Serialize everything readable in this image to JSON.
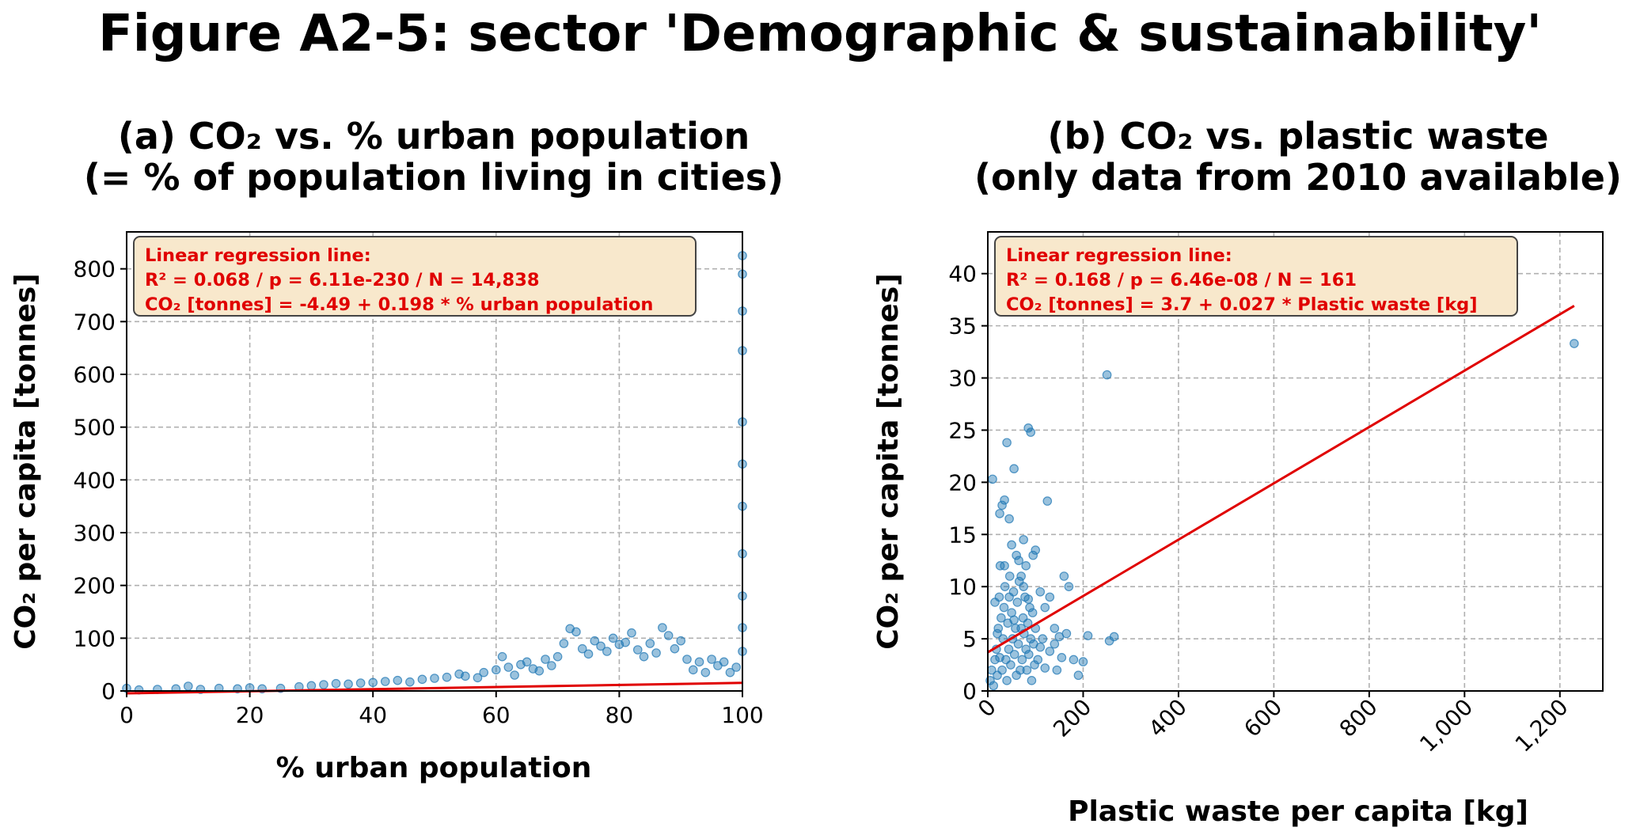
{
  "figure": {
    "title": "Figure A2-5:  sector 'Demographic & sustainability'"
  },
  "colors": {
    "points": "#1f77b4",
    "regression": "#e00000",
    "box_fill": "#f8e8cc",
    "box_stroke": "#444444"
  },
  "chart_data": [
    {
      "type": "scatter",
      "title_line1": "(a)     CO₂ vs. % urban population",
      "title_line2": "(= % of population living in cities)",
      "xlabel": "% urban population",
      "ylabel": "CO₂ per capita [tonnes]",
      "xlim": [
        0,
        100
      ],
      "ylim": [
        0,
        870
      ],
      "xticks": [
        0,
        20,
        40,
        60,
        80,
        100
      ],
      "xtick_labels": [
        "0",
        "20",
        "40",
        "60",
        "80",
        "100"
      ],
      "yticks": [
        0,
        100,
        200,
        300,
        400,
        500,
        600,
        700,
        800
      ],
      "ytick_labels": [
        "0",
        "100",
        "200",
        "300",
        "400",
        "500",
        "600",
        "700",
        "800"
      ],
      "grid": true,
      "xtick_rotation": 0,
      "annotation": {
        "line1": "Linear regression line:",
        "line2": "R² = 0.068   /   p = 6.11e-230   /   N = 14,838",
        "line3": "CO₂ [tonnes] = -4.49 + 0.198 * % urban population"
      },
      "regression": {
        "intercept": -4.49,
        "slope": 0.198
      },
      "points": [
        [
          0,
          5
        ],
        [
          2,
          2
        ],
        [
          5,
          3
        ],
        [
          8,
          4
        ],
        [
          10,
          9
        ],
        [
          12,
          3
        ],
        [
          15,
          5
        ],
        [
          18,
          4
        ],
        [
          20,
          6
        ],
        [
          22,
          4
        ],
        [
          25,
          5
        ],
        [
          28,
          8
        ],
        [
          30,
          10
        ],
        [
          32,
          12
        ],
        [
          34,
          14
        ],
        [
          36,
          13
        ],
        [
          38,
          15
        ],
        [
          40,
          16
        ],
        [
          42,
          18
        ],
        [
          44,
          20
        ],
        [
          46,
          17
        ],
        [
          48,
          22
        ],
        [
          50,
          24
        ],
        [
          52,
          26
        ],
        [
          54,
          32
        ],
        [
          55,
          28
        ],
        [
          57,
          25
        ],
        [
          58,
          35
        ],
        [
          60,
          40
        ],
        [
          61,
          65
        ],
        [
          62,
          45
        ],
        [
          63,
          30
        ],
        [
          64,
          50
        ],
        [
          65,
          55
        ],
        [
          66,
          42
        ],
        [
          67,
          38
        ],
        [
          68,
          60
        ],
        [
          69,
          48
        ],
        [
          70,
          65
        ],
        [
          71,
          90
        ],
        [
          72,
          118
        ],
        [
          73,
          112
        ],
        [
          74,
          80
        ],
        [
          75,
          70
        ],
        [
          76,
          95
        ],
        [
          77,
          85
        ],
        [
          78,
          75
        ],
        [
          79,
          100
        ],
        [
          80,
          88
        ],
        [
          81,
          92
        ],
        [
          82,
          110
        ],
        [
          83,
          78
        ],
        [
          84,
          65
        ],
        [
          85,
          90
        ],
        [
          86,
          72
        ],
        [
          87,
          120
        ],
        [
          88,
          105
        ],
        [
          89,
          80
        ],
        [
          90,
          95
        ],
        [
          91,
          60
        ],
        [
          92,
          40
        ],
        [
          93,
          55
        ],
        [
          94,
          35
        ],
        [
          95,
          60
        ],
        [
          96,
          48
        ],
        [
          97,
          55
        ],
        [
          98,
          35
        ],
        [
          99,
          45
        ],
        [
          100,
          825
        ],
        [
          100,
          790
        ],
        [
          100,
          720
        ],
        [
          100,
          645
        ],
        [
          100,
          510
        ],
        [
          100,
          430
        ],
        [
          100,
          350
        ],
        [
          100,
          260
        ],
        [
          100,
          180
        ],
        [
          100,
          120
        ],
        [
          100,
          75
        ]
      ]
    },
    {
      "type": "scatter",
      "title_line1": "(b)     CO₂ vs. plastic waste",
      "title_line2": "(only data from 2010 available)",
      "xlabel": "Plastic waste per capita [kg]",
      "ylabel": "CO₂ per capita [tonnes]",
      "xlim": [
        0,
        1290
      ],
      "ylim": [
        0,
        44
      ],
      "xticks": [
        0,
        200,
        400,
        600,
        800,
        1000,
        1200
      ],
      "xtick_labels": [
        "0",
        "200",
        "400",
        "600",
        "800",
        "1,000",
        "1,200"
      ],
      "yticks": [
        0,
        5,
        10,
        15,
        20,
        25,
        30,
        35,
        40
      ],
      "ytick_labels": [
        "0",
        "5",
        "10",
        "15",
        "20",
        "25",
        "30",
        "35",
        "40"
      ],
      "grid": true,
      "xtick_rotation": -45,
      "annotation": {
        "line1": "Linear regression line:",
        "line2": "R² = 0.168   /   p = 6.46e-08   /   N = 161",
        "line3": "CO₂ [tonnes] = 3.7 + 0.027 * Plastic waste [kg]"
      },
      "regression": {
        "intercept": 3.7,
        "slope": 0.027,
        "x_range": [
          0,
          1230
        ]
      },
      "points": [
        [
          10,
          20.3
        ],
        [
          25,
          17
        ],
        [
          30,
          17.8
        ],
        [
          35,
          18.3
        ],
        [
          40,
          23.8
        ],
        [
          55,
          21.3
        ],
        [
          45,
          16.5
        ],
        [
          50,
          14
        ],
        [
          60,
          13
        ],
        [
          70,
          11
        ],
        [
          75,
          10
        ],
        [
          80,
          12
        ],
        [
          85,
          25.2
        ],
        [
          90,
          24.8
        ],
        [
          100,
          13.5
        ],
        [
          110,
          9.5
        ],
        [
          120,
          8
        ],
        [
          125,
          18.2
        ],
        [
          130,
          9
        ],
        [
          140,
          6
        ],
        [
          150,
          5.2
        ],
        [
          160,
          11
        ],
        [
          170,
          10
        ],
        [
          180,
          3
        ],
        [
          200,
          2.8
        ],
        [
          210,
          5.3
        ],
        [
          250,
          30.3
        ],
        [
          255,
          4.8
        ],
        [
          265,
          5.2
        ],
        [
          1230,
          33.3
        ],
        [
          5,
          1
        ],
        [
          8,
          2
        ],
        [
          12,
          0.5
        ],
        [
          15,
          3
        ],
        [
          18,
          4
        ],
        [
          20,
          1.5
        ],
        [
          22,
          6
        ],
        [
          24,
          9
        ],
        [
          26,
          12
        ],
        [
          28,
          7
        ],
        [
          30,
          2
        ],
        [
          32,
          5
        ],
        [
          34,
          8
        ],
        [
          36,
          10
        ],
        [
          38,
          3
        ],
        [
          40,
          1
        ],
        [
          42,
          6.5
        ],
        [
          44,
          4
        ],
        [
          46,
          11
        ],
        [
          48,
          2.5
        ],
        [
          50,
          7.5
        ],
        [
          52,
          5
        ],
        [
          54,
          9.5
        ],
        [
          56,
          3.5
        ],
        [
          58,
          6
        ],
        [
          60,
          1.5
        ],
        [
          62,
          8.5
        ],
        [
          64,
          4.5
        ],
        [
          66,
          10.5
        ],
        [
          68,
          2
        ],
        [
          70,
          6
        ],
        [
          72,
          3
        ],
        [
          74,
          7
        ],
        [
          76,
          5.5
        ],
        [
          78,
          9
        ],
        [
          80,
          4
        ],
        [
          82,
          2
        ],
        [
          84,
          6.5
        ],
        [
          86,
          3.5
        ],
        [
          88,
          8
        ],
        [
          90,
          5
        ],
        [
          92,
          1
        ],
        [
          94,
          7.5
        ],
        [
          96,
          4.5
        ],
        [
          98,
          2.5
        ],
        [
          100,
          6
        ],
        [
          105,
          3
        ],
        [
          110,
          4.2
        ],
        [
          115,
          5
        ],
        [
          120,
          2.2
        ],
        [
          130,
          3.8
        ],
        [
          140,
          4.5
        ],
        [
          145,
          2
        ],
        [
          155,
          3.2
        ],
        [
          165,
          5.5
        ],
        [
          190,
          1.5
        ],
        [
          15,
          8.5
        ],
        [
          20,
          5.5
        ],
        [
          25,
          3.2
        ],
        [
          35,
          12
        ],
        [
          45,
          9
        ],
        [
          55,
          6.8
        ],
        [
          65,
          12.5
        ],
        [
          75,
          14.5
        ],
        [
          85,
          8.8
        ],
        [
          95,
          13
        ]
      ]
    }
  ]
}
